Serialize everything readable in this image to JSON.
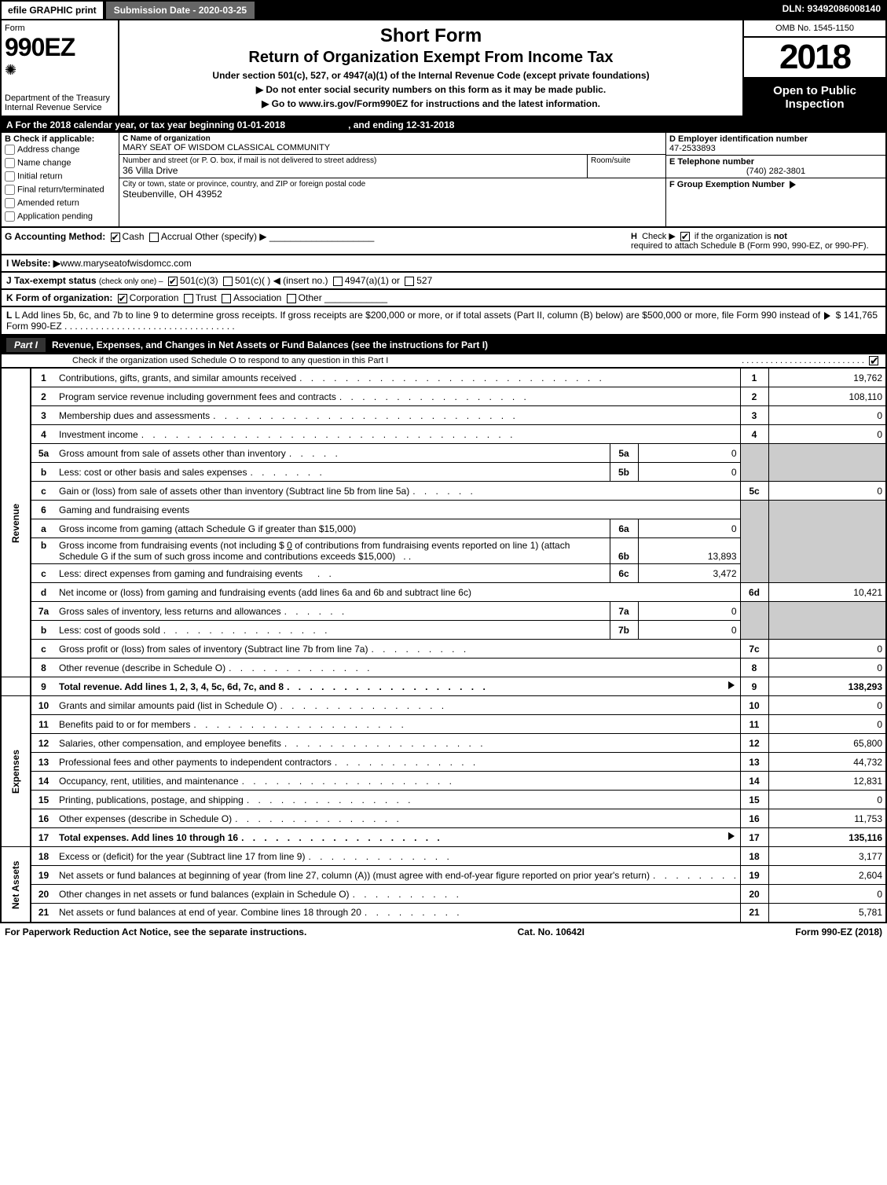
{
  "topbar": {
    "efile": "efile GRAPHIC print",
    "submission": "Submission Date - 2020-03-25",
    "dln": "DLN: 93492086008140"
  },
  "header": {
    "form_label": "Form",
    "form_number": "990EZ",
    "dept": "Department of the Treasury",
    "irs": "Internal Revenue Service",
    "title1": "Short Form",
    "title2": "Return of Organization Exempt From Income Tax",
    "sub1": "Under section 501(c), 527, or 4947(a)(1) of the Internal Revenue Code (except private foundations)",
    "sub2": "▶ Do not enter social security numbers on this form as it may be made public.",
    "sub3_pre": "▶ Go to ",
    "sub3_link": "www.irs.gov/Form990EZ",
    "sub3_post": " for instructions and the latest information.",
    "omb": "OMB No. 1545-1150",
    "year": "2018",
    "open": "Open to Public Inspection"
  },
  "period": {
    "text": "A For the 2018 calendar year, or tax year beginning 01-01-2018",
    "end": ", and ending 12-31-2018"
  },
  "box_b": {
    "title": "B Check if applicable:",
    "items": [
      "Address change",
      "Name change",
      "Initial return",
      "Final return/terminated",
      "Amended return",
      "Application pending"
    ]
  },
  "box_c": {
    "label": "C Name of organization",
    "name": "MARY SEAT OF WISDOM CLASSICAL COMMUNITY",
    "addr_label": "Number and street (or P. O. box, if mail is not delivered to street address)",
    "addr": "36 Villa Drive",
    "room_label": "Room/suite",
    "city_label": "City or town, state or province, country, and ZIP or foreign postal code",
    "city": "Steubenville, OH  43952"
  },
  "box_d": {
    "label": "D Employer identification number",
    "val": "47-2533893"
  },
  "box_e": {
    "label": "E Telephone number",
    "val": "(740) 282-3801"
  },
  "box_f": {
    "label": "F Group Exemption Number",
    "arrow": "▶"
  },
  "row_g": {
    "g_label": "G Accounting Method:",
    "g_cash": "Cash",
    "g_accrual": "Accrual",
    "g_other": "Other (specify) ▶",
    "h_text1": "Check ▶",
    "h_text2": "if the organization is",
    "h_not": "not",
    "h_text3": "required to attach Schedule B (Form 990, 990-EZ, or 990-PF)."
  },
  "row_i": {
    "label": "I Website: ▶",
    "val": "www.maryseatofwisdomcc.com"
  },
  "row_j": {
    "label": "J Tax-exempt status",
    "sub": "(check only one) ‒",
    "o1": "501(c)(3)",
    "o2": "501(c)(  ) ◀ (insert no.)",
    "o3": "4947(a)(1) or",
    "o4": "527"
  },
  "row_k": {
    "label": "K Form of organization:",
    "o1": "Corporation",
    "o2": "Trust",
    "o3": "Association",
    "o4": "Other"
  },
  "row_l": {
    "text": "L Add lines 5b, 6c, and 7b to line 9 to determine gross receipts. If gross receipts are $200,000 or more, or if total assets (Part II, column (B) below) are $500,000 or more, file Form 990 instead of Form 990-EZ",
    "arrow": "▶",
    "amt": "$ 141,765"
  },
  "part1": {
    "label": "Part I",
    "title": "Revenue, Expenses, and Changes in Net Assets or Fund Balances (see the instructions for Part I)",
    "sub": "Check if the organization used Schedule O to respond to any question in this Part I"
  },
  "sections": {
    "rev": "Revenue",
    "exp": "Expenses",
    "na": "Net Assets"
  },
  "lines": {
    "1": {
      "d": "Contributions, gifts, grants, and similar amounts received",
      "a": "19,762"
    },
    "2": {
      "d": "Program service revenue including government fees and contracts",
      "a": "108,110"
    },
    "3": {
      "d": "Membership dues and assessments",
      "a": "0"
    },
    "4": {
      "d": "Investment income",
      "a": "0"
    },
    "5a": {
      "d": "Gross amount from sale of assets other than inventory",
      "sl": "5a",
      "sv": "0"
    },
    "5b": {
      "d": "Less: cost or other basis and sales expenses",
      "sl": "5b",
      "sv": "0"
    },
    "5c": {
      "d": "Gain or (loss) from sale of assets other than inventory (Subtract line 5b from line 5a)",
      "n": "5c",
      "a": "0"
    },
    "6": {
      "d": "Gaming and fundraising events"
    },
    "6a": {
      "d": "Gross income from gaming (attach Schedule G if greater than $15,000)",
      "sl": "6a",
      "sv": "0"
    },
    "6b": {
      "d1": "Gross income from fundraising events (not including $",
      "d1v": "0",
      "d2": "of contributions from fundraising events reported on line 1) (attach Schedule G if the sum of such gross income and contributions exceeds $15,000)",
      "sl": "6b",
      "sv": "13,893"
    },
    "6c": {
      "d": "Less: direct expenses from gaming and fundraising events",
      "sl": "6c",
      "sv": "3,472"
    },
    "6d": {
      "d": "Net income or (loss) from gaming and fundraising events (add lines 6a and 6b and subtract line 6c)",
      "n": "6d",
      "a": "10,421"
    },
    "7a": {
      "d": "Gross sales of inventory, less returns and allowances",
      "sl": "7a",
      "sv": "0"
    },
    "7b": {
      "d": "Less: cost of goods sold",
      "sl": "7b",
      "sv": "0"
    },
    "7c": {
      "d": "Gross profit or (loss) from sales of inventory (Subtract line 7b from line 7a)",
      "n": "7c",
      "a": "0"
    },
    "8": {
      "d": "Other revenue (describe in Schedule O)",
      "a": "0"
    },
    "9": {
      "d": "Total revenue. Add lines 1, 2, 3, 4, 5c, 6d, 7c, and 8",
      "a": "138,293",
      "bold": true,
      "arrow": true
    },
    "10": {
      "d": "Grants and similar amounts paid (list in Schedule O)",
      "a": "0"
    },
    "11": {
      "d": "Benefits paid to or for members",
      "a": "0"
    },
    "12": {
      "d": "Salaries, other compensation, and employee benefits",
      "a": "65,800"
    },
    "13": {
      "d": "Professional fees and other payments to independent contractors",
      "a": "44,732"
    },
    "14": {
      "d": "Occupancy, rent, utilities, and maintenance",
      "a": "12,831"
    },
    "15": {
      "d": "Printing, publications, postage, and shipping",
      "a": "0"
    },
    "16": {
      "d": "Other expenses (describe in Schedule O)",
      "a": "11,753"
    },
    "17": {
      "d": "Total expenses. Add lines 10 through 16",
      "a": "135,116",
      "bold": true,
      "arrow": true
    },
    "18": {
      "d": "Excess or (deficit) for the year (Subtract line 17 from line 9)",
      "a": "3,177"
    },
    "19": {
      "d": "Net assets or fund balances at beginning of year (from line 27, column (A)) (must agree with end-of-year figure reported on prior year's return)",
      "a": "2,604"
    },
    "20": {
      "d": "Other changes in net assets or fund balances (explain in Schedule O)",
      "a": "0"
    },
    "21": {
      "d": "Net assets or fund balances at end of year. Combine lines 18 through 20",
      "a": "5,781"
    }
  },
  "footer": {
    "left": "For Paperwork Reduction Act Notice, see the separate instructions.",
    "mid": "Cat. No. 10642I",
    "right": "Form 990-EZ (2018)"
  },
  "colors": {
    "black": "#000000",
    "white": "#ffffff",
    "grey_header": "#666666",
    "grey_cell": "#cccccc"
  }
}
